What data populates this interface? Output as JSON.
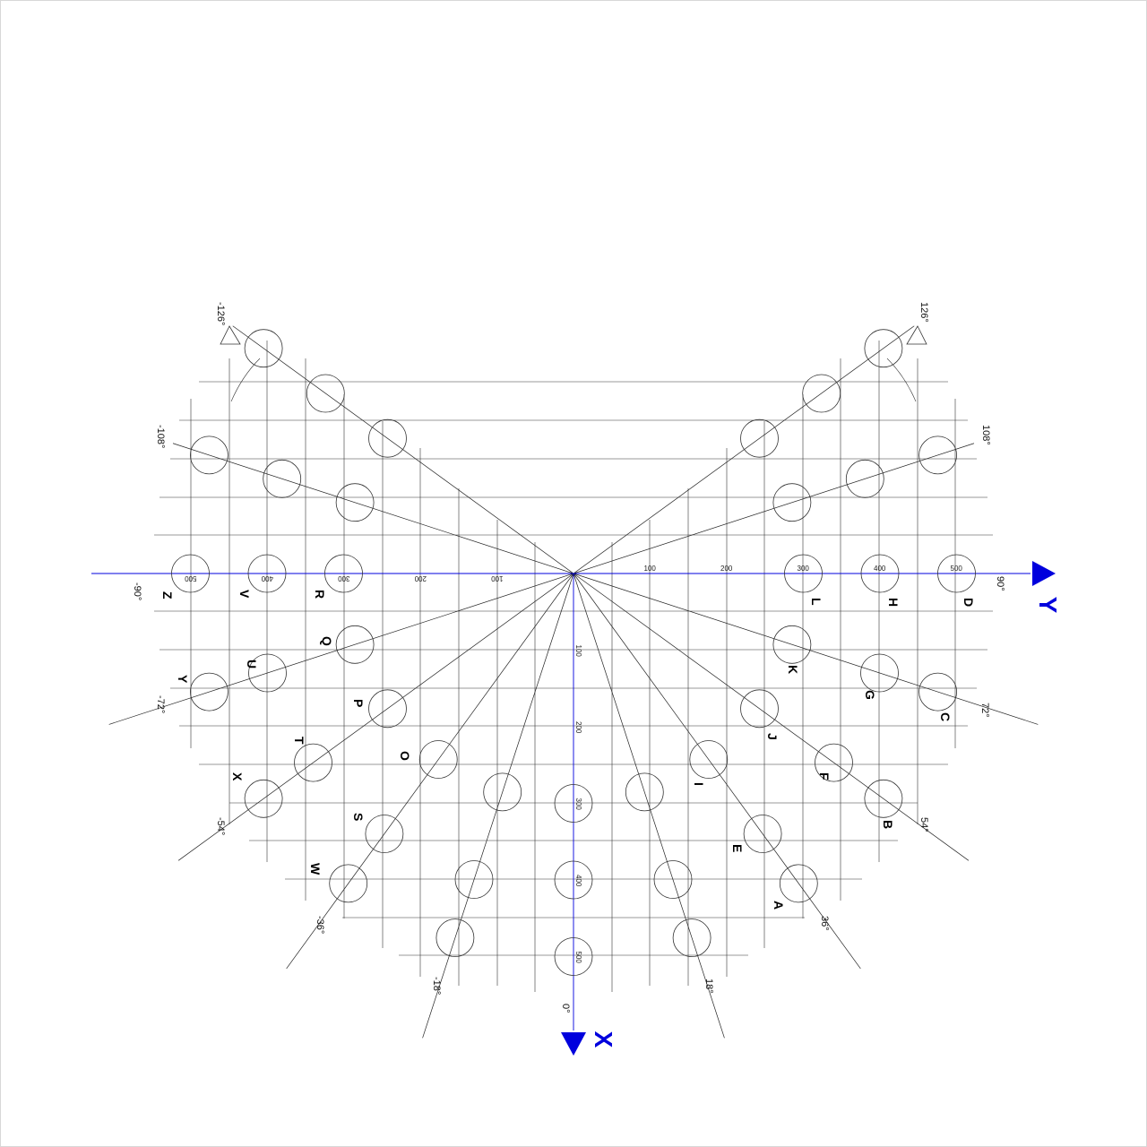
{
  "title": "",
  "axes": {
    "x": {
      "label": "X",
      "color": "#0000dd"
    },
    "y": {
      "label": "Y",
      "color": "#0000dd"
    },
    "x_ticks": [
      "100",
      "200",
      "300",
      "400",
      "500"
    ],
    "y_ticks_pos": [
      "100",
      "200",
      "300",
      "400",
      "500"
    ],
    "y_ticks_neg": [
      "100",
      "200",
      "300",
      "400",
      "500"
    ]
  },
  "angle_labels": [
    "0°",
    "18°",
    "-18°",
    "36°",
    "-36°",
    "54°",
    "-54°",
    "72°",
    "-72°",
    "90°",
    "-90°",
    "108°",
    "-108°",
    "126°",
    "-126°"
  ],
  "hole_letters": [
    "A",
    "B",
    "C",
    "D",
    "E",
    "F",
    "G",
    "H",
    "I",
    "J",
    "K",
    "L",
    "O",
    "P",
    "Q",
    "R",
    "S",
    "T",
    "U",
    "V",
    "W",
    "X",
    "Y",
    "Z"
  ],
  "colors": {
    "line": "#333333",
    "accent": "#0000dd"
  }
}
